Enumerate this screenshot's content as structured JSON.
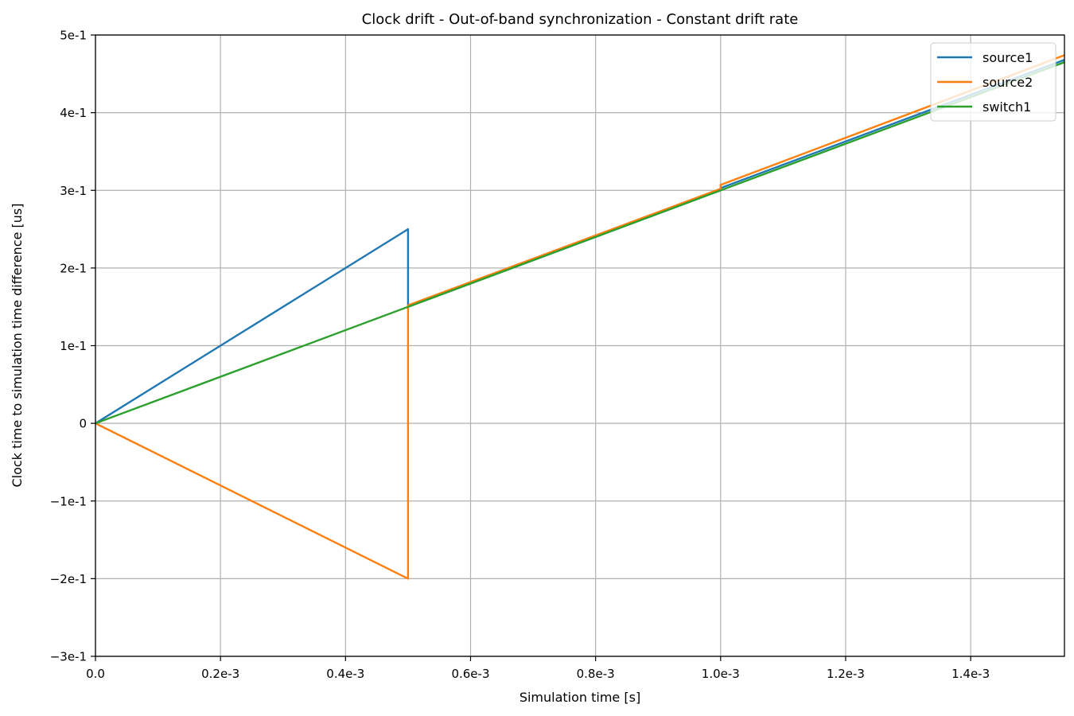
{
  "chart_data": {
    "type": "line",
    "title": "Clock drift - Out-of-band synchronization - Constant drift rate",
    "xlabel": "Simulation time [s]",
    "ylabel": "Clock time to simulation time difference [us]",
    "xlim": [
      0,
      0.00155
    ],
    "ylim": [
      -0.3,
      0.5
    ],
    "grid": true,
    "legend_position": "top-right",
    "x_ticks": [
      {
        "value": 0.0,
        "label": "0.0"
      },
      {
        "value": 0.0002,
        "label": "0.2e-3"
      },
      {
        "value": 0.0004,
        "label": "0.4e-3"
      },
      {
        "value": 0.0006,
        "label": "0.6e-3"
      },
      {
        "value": 0.0008,
        "label": "0.8e-3"
      },
      {
        "value": 0.001,
        "label": "1.0e-3"
      },
      {
        "value": 0.0012,
        "label": "1.2e-3"
      },
      {
        "value": 0.0014,
        "label": "1.4e-3"
      }
    ],
    "y_ticks": [
      {
        "value": 0.5,
        "label": "5e-1"
      },
      {
        "value": 0.4,
        "label": "4e-1"
      },
      {
        "value": 0.3,
        "label": "3e-1"
      },
      {
        "value": 0.2,
        "label": "2e-1"
      },
      {
        "value": 0.1,
        "label": "1e-1"
      },
      {
        "value": 0.0,
        "label": "0"
      },
      {
        "value": -0.1,
        "label": "−1e-1"
      },
      {
        "value": -0.2,
        "label": "−2e-1"
      },
      {
        "value": -0.3,
        "label": "−3e-1"
      }
    ],
    "series": [
      {
        "name": "source1",
        "color": "#1f77b4",
        "points": [
          [
            0,
            0
          ],
          [
            0.0005,
            0.25
          ],
          [
            0.0005,
            0.15
          ],
          [
            0.001,
            0.3
          ],
          [
            0.001,
            0.303
          ],
          [
            0.00155,
            0.468
          ]
        ]
      },
      {
        "name": "source2",
        "color": "#ff7f0e",
        "points": [
          [
            0,
            0
          ],
          [
            0.0005,
            -0.2
          ],
          [
            0.0005,
            0.152
          ],
          [
            0.001,
            0.302
          ],
          [
            0.001,
            0.307
          ],
          [
            0.00155,
            0.474
          ]
        ]
      },
      {
        "name": "switch1",
        "color": "#2ca02c",
        "points": [
          [
            0,
            0
          ],
          [
            0.00155,
            0.465
          ]
        ]
      }
    ]
  }
}
